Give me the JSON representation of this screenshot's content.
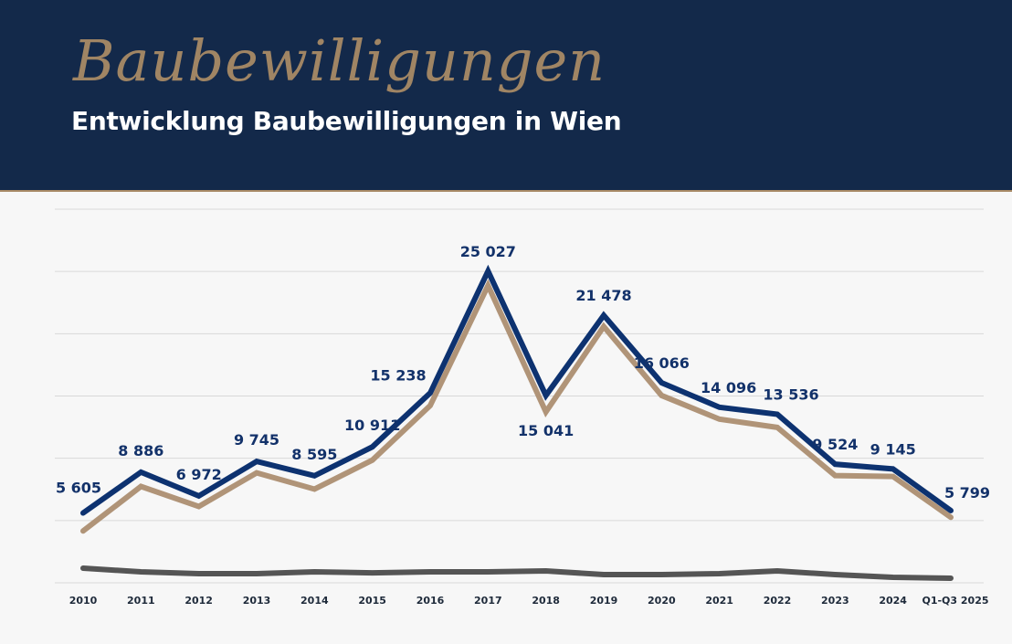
{
  "header": {
    "script_title": "Baubewilligungen",
    "title": "Entwicklung Baubewilligungen in Wien"
  },
  "chart_data": {
    "type": "line",
    "categories": [
      "2010",
      "2011",
      "2012",
      "2013",
      "2014",
      "2015",
      "2016",
      "2017",
      "2018",
      "2019",
      "2020",
      "2021",
      "2022",
      "2023",
      "2024",
      "Q1-Q3 2025"
    ],
    "series": [
      {
        "color": "#0d3270",
        "labeled": true,
        "values": [
          5605,
          8886,
          6972,
          9745,
          8595,
          10911,
          15238,
          25027,
          15041,
          21478,
          16066,
          14096,
          13536,
          9524,
          9145,
          5799
        ],
        "labels": [
          "5 605",
          "8 886",
          "6 972",
          "9 745",
          "8 595",
          "10 911",
          "15 238",
          "25 027",
          "15 041",
          "21 478",
          "16 066",
          "14 096",
          "13 536",
          "9 524",
          "9 145",
          "5 799"
        ]
      },
      {
        "color": "#b09478",
        "labeled": false,
        "values": [
          4160,
          7740,
          6130,
          8830,
          7520,
          9850,
          14230,
          23870,
          13720,
          20580,
          15040,
          13140,
          12480,
          8610,
          8540,
          5260
        ]
      },
      {
        "color": "#555555",
        "labeled": false,
        "values": [
          1170,
          880,
          730,
          730,
          880,
          800,
          880,
          880,
          950,
          660,
          660,
          730,
          950,
          660,
          440,
          370
        ]
      }
    ],
    "ylim": [
      0,
      30000
    ],
    "grid": true,
    "y_tick_labels_shown": false,
    "legend": "none"
  }
}
